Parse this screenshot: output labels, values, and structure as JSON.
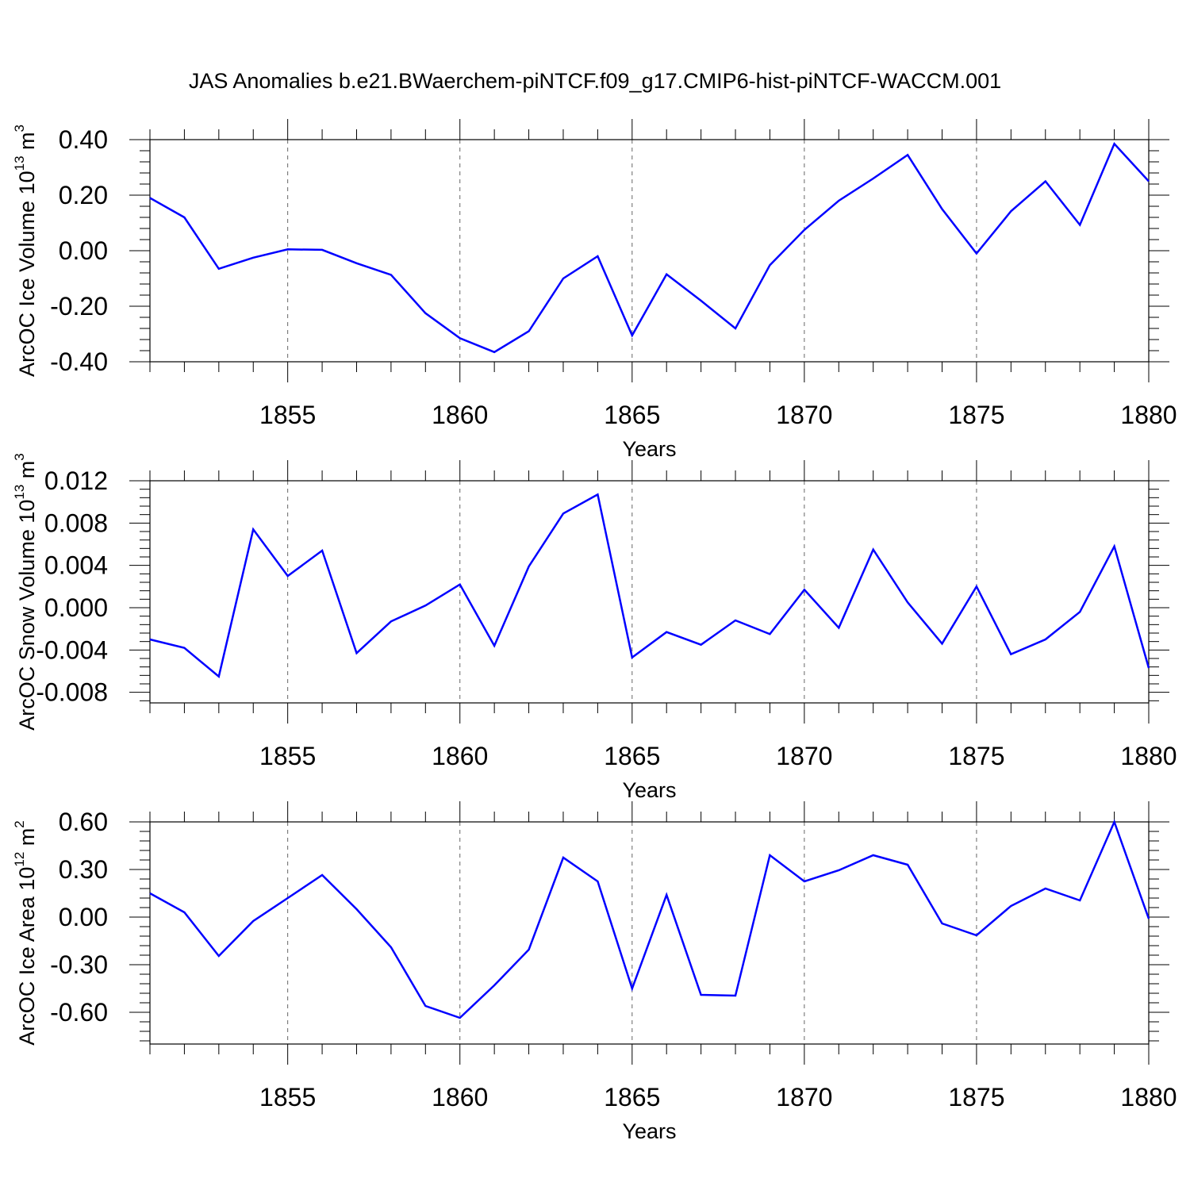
{
  "title": "JAS Anomalies b.e21.BWaerchem-piNTCF.f09_g17.CMIP6-hist-piNTCF-WACCM.001",
  "chart_data": [
    {
      "type": "line",
      "ylabel": {
        "main": "ArcOC Ice Volume 10",
        "exp": "13",
        "unit": " m",
        "unit_exp": "3"
      },
      "xlabel": "Years",
      "xlim": [
        1851,
        1880
      ],
      "ylim": [
        -0.4,
        0.4
      ],
      "yticks": [
        -0.4,
        -0.2,
        0.0,
        0.2,
        0.4
      ],
      "ytick_labels": [
        "-0.40",
        "-0.20",
        "0.00",
        "0.20",
        "0.40"
      ],
      "xticks": [
        1855,
        1860,
        1865,
        1870,
        1875,
        1880
      ],
      "xtick_labels": [
        "1855",
        "1860",
        "1865",
        "1870",
        "1875",
        "1880"
      ],
      "grid": "dashed vertical lines at major x ticks",
      "color": "#0000ff",
      "x": [
        1851,
        1852,
        1853,
        1854,
        1855,
        1856,
        1857,
        1858,
        1859,
        1860,
        1861,
        1862,
        1863,
        1864,
        1865,
        1866,
        1867,
        1868,
        1869,
        1870,
        1871,
        1872,
        1873,
        1874,
        1875,
        1876,
        1877,
        1878,
        1879,
        1880
      ],
      "values": [
        0.19,
        0.12,
        -0.065,
        -0.025,
        0.005,
        0.003,
        -0.045,
        -0.087,
        -0.225,
        -0.315,
        -0.365,
        -0.29,
        -0.1,
        -0.02,
        -0.305,
        -0.085,
        -0.18,
        -0.28,
        -0.052,
        0.075,
        0.18,
        0.26,
        0.345,
        0.15,
        -0.01,
        0.142,
        0.25,
        0.093,
        0.385,
        0.25
      ]
    },
    {
      "type": "line",
      "ylabel": {
        "main": "ArcOC Snow Volume 10",
        "exp": "13",
        "unit": " m",
        "unit_exp": "3"
      },
      "xlabel": "Years",
      "xlim": [
        1851,
        1880
      ],
      "ylim": [
        -0.009,
        0.012
      ],
      "yticks": [
        -0.008,
        -0.004,
        0.0,
        0.004,
        0.008,
        0.012
      ],
      "ytick_labels": [
        "-0.008",
        "-0.004",
        "0.000",
        "0.004",
        "0.008",
        "0.012"
      ],
      "xticks": [
        1855,
        1860,
        1865,
        1870,
        1875,
        1880
      ],
      "xtick_labels": [
        "1855",
        "1860",
        "1865",
        "1870",
        "1875",
        "1880"
      ],
      "grid": "dashed vertical lines at major x ticks",
      "color": "#0000ff",
      "x": [
        1851,
        1852,
        1853,
        1854,
        1855,
        1856,
        1857,
        1858,
        1859,
        1860,
        1861,
        1862,
        1863,
        1864,
        1865,
        1866,
        1867,
        1868,
        1869,
        1870,
        1871,
        1872,
        1873,
        1874,
        1875,
        1876,
        1877,
        1878,
        1879,
        1880
      ],
      "values": [
        -0.003,
        -0.0038,
        -0.0065,
        0.0074,
        0.003,
        0.0054,
        -0.0043,
        -0.0013,
        0.0002,
        0.0022,
        -0.0036,
        0.0039,
        0.0089,
        0.0107,
        -0.0047,
        -0.0023,
        -0.0035,
        -0.0012,
        -0.0025,
        0.0017,
        -0.0019,
        0.0055,
        0.0005,
        -0.0034,
        0.002,
        -0.0044,
        -0.003,
        -0.0004,
        0.0058,
        -0.0057
      ]
    },
    {
      "type": "line",
      "ylabel": {
        "main": "ArcOC Ice Area 10",
        "exp": "12",
        "unit": " m",
        "unit_exp": "2"
      },
      "xlabel": "Years",
      "xlim": [
        1851,
        1880
      ],
      "ylim": [
        -0.8,
        0.6
      ],
      "yticks": [
        -0.6,
        -0.3,
        0.0,
        0.3,
        0.6
      ],
      "ytick_labels": [
        "-0.60",
        "-0.30",
        "0.00",
        "0.30",
        "0.60"
      ],
      "xticks": [
        1855,
        1860,
        1865,
        1870,
        1875,
        1880
      ],
      "xtick_labels": [
        "1855",
        "1860",
        "1865",
        "1870",
        "1875",
        "1880"
      ],
      "grid": "dashed vertical lines at major x ticks",
      "color": "#0000ff",
      "x": [
        1851,
        1852,
        1853,
        1854,
        1855,
        1856,
        1857,
        1858,
        1859,
        1860,
        1861,
        1862,
        1863,
        1864,
        1865,
        1866,
        1867,
        1868,
        1869,
        1870,
        1871,
        1872,
        1873,
        1874,
        1875,
        1876,
        1877,
        1878,
        1879,
        1880
      ],
      "values": [
        0.15,
        0.03,
        -0.245,
        -0.025,
        0.12,
        0.265,
        0.05,
        -0.19,
        -0.56,
        -0.635,
        -0.43,
        -0.205,
        0.375,
        0.225,
        -0.45,
        0.14,
        -0.49,
        -0.495,
        0.39,
        0.225,
        0.295,
        0.39,
        0.33,
        -0.04,
        -0.115,
        0.07,
        0.18,
        0.105,
        0.6,
        -0.01
      ]
    }
  ]
}
